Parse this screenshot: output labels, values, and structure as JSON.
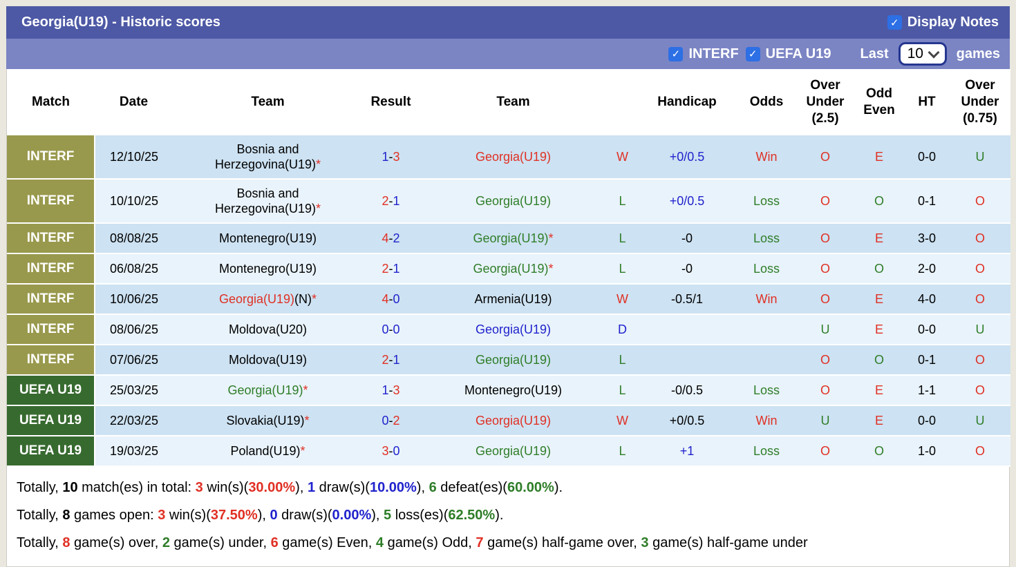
{
  "title_bar": {
    "title": "Georgia(U19) - Historic scores",
    "display_notes_label": "Display Notes",
    "display_notes_checked": true
  },
  "filter_bar": {
    "interf_label": "INTERF",
    "interf_checked": true,
    "uefa_label": "UEFA U19",
    "uefa_checked": true,
    "last_label": "Last",
    "last_games_value": "10",
    "games_label": "games"
  },
  "colors": {
    "red": "#e03024",
    "green": "#2e7d28",
    "blue": "#2023cc",
    "title_bar_bg": "#4d59a5",
    "filter_bar_bg": "#7b85c4",
    "interf_label_bg": "#99994d",
    "uefa_label_bg": "#376a2f",
    "row_stripe_dark": "#cde2f2",
    "row_stripe_light": "#e9f3fb",
    "checkbox_blue": "#2d6fe4"
  },
  "table": {
    "columns": [
      "Match",
      "Date",
      "Team",
      "Result",
      "Team",
      "",
      "Handicap",
      "Odds",
      "Over Under (2.5)",
      "Odd Even",
      "HT",
      "Over Under (0.75)"
    ],
    "rows": [
      {
        "league": "INTERF",
        "league_color": "olive",
        "date": "12/10/25",
        "team1": {
          "text": "Bosnia and Herzegovina(U19)",
          "color": "black",
          "star": true,
          "suffix": ""
        },
        "result": {
          "home": "1",
          "home_color": "blue",
          "away": "3",
          "away_color": "red"
        },
        "team2": {
          "text": "Georgia(U19)",
          "color": "red",
          "star": false,
          "suffix": ""
        },
        "wld": {
          "t": "W",
          "c": "red"
        },
        "handicap": {
          "t": "+0/0.5",
          "c": "blue"
        },
        "odds": {
          "t": "Win",
          "c": "red"
        },
        "ou25": {
          "t": "O",
          "c": "red"
        },
        "oddeven": {
          "t": "E",
          "c": "red"
        },
        "ht": "0-0",
        "ou075": {
          "t": "U",
          "c": "green"
        }
      },
      {
        "league": "INTERF",
        "league_color": "olive",
        "date": "10/10/25",
        "team1": {
          "text": "Bosnia and Herzegovina(U19)",
          "color": "black",
          "star": true,
          "suffix": ""
        },
        "result": {
          "home": "2",
          "home_color": "red",
          "away": "1",
          "away_color": "blue"
        },
        "team2": {
          "text": "Georgia(U19)",
          "color": "green",
          "star": false,
          "suffix": ""
        },
        "wld": {
          "t": "L",
          "c": "green"
        },
        "handicap": {
          "t": "+0/0.5",
          "c": "blue"
        },
        "odds": {
          "t": "Loss",
          "c": "green"
        },
        "ou25": {
          "t": "O",
          "c": "red"
        },
        "oddeven": {
          "t": "O",
          "c": "green"
        },
        "ht": "0-1",
        "ou075": {
          "t": "O",
          "c": "red"
        }
      },
      {
        "league": "INTERF",
        "league_color": "olive",
        "date": "08/08/25",
        "team1": {
          "text": "Montenegro(U19)",
          "color": "black",
          "star": false,
          "suffix": ""
        },
        "result": {
          "home": "4",
          "home_color": "red",
          "away": "2",
          "away_color": "blue"
        },
        "team2": {
          "text": "Georgia(U19)",
          "color": "green",
          "star": true,
          "suffix": ""
        },
        "wld": {
          "t": "L",
          "c": "green"
        },
        "handicap": {
          "t": "-0",
          "c": "black"
        },
        "odds": {
          "t": "Loss",
          "c": "green"
        },
        "ou25": {
          "t": "O",
          "c": "red"
        },
        "oddeven": {
          "t": "E",
          "c": "red"
        },
        "ht": "3-0",
        "ou075": {
          "t": "O",
          "c": "red"
        }
      },
      {
        "league": "INTERF",
        "league_color": "olive",
        "date": "06/08/25",
        "team1": {
          "text": "Montenegro(U19)",
          "color": "black",
          "star": false,
          "suffix": ""
        },
        "result": {
          "home": "2",
          "home_color": "red",
          "away": "1",
          "away_color": "blue"
        },
        "team2": {
          "text": "Georgia(U19)",
          "color": "green",
          "star": true,
          "suffix": ""
        },
        "wld": {
          "t": "L",
          "c": "green"
        },
        "handicap": {
          "t": "-0",
          "c": "black"
        },
        "odds": {
          "t": "Loss",
          "c": "green"
        },
        "ou25": {
          "t": "O",
          "c": "red"
        },
        "oddeven": {
          "t": "O",
          "c": "green"
        },
        "ht": "2-0",
        "ou075": {
          "t": "O",
          "c": "red"
        }
      },
      {
        "league": "INTERF",
        "league_color": "olive",
        "date": "10/06/25",
        "team1": {
          "text": "Georgia(U19)",
          "color": "red",
          "star": true,
          "suffix": "(N)"
        },
        "result": {
          "home": "4",
          "home_color": "red",
          "away": "0",
          "away_color": "blue"
        },
        "team2": {
          "text": "Armenia(U19)",
          "color": "black",
          "star": false,
          "suffix": ""
        },
        "wld": {
          "t": "W",
          "c": "red"
        },
        "handicap": {
          "t": "-0.5/1",
          "c": "black"
        },
        "odds": {
          "t": "Win",
          "c": "red"
        },
        "ou25": {
          "t": "O",
          "c": "red"
        },
        "oddeven": {
          "t": "E",
          "c": "red"
        },
        "ht": "4-0",
        "ou075": {
          "t": "O",
          "c": "red"
        }
      },
      {
        "league": "INTERF",
        "league_color": "olive",
        "date": "08/06/25",
        "team1": {
          "text": "Moldova(U20)",
          "color": "black",
          "star": false,
          "suffix": ""
        },
        "result": {
          "home": "0",
          "home_color": "blue",
          "away": "0",
          "away_color": "blue"
        },
        "team2": {
          "text": "Georgia(U19)",
          "color": "blue",
          "star": false,
          "suffix": ""
        },
        "wld": {
          "t": "D",
          "c": "blue"
        },
        "handicap": {
          "t": "",
          "c": "black"
        },
        "odds": {
          "t": "",
          "c": "black"
        },
        "ou25": {
          "t": "U",
          "c": "green"
        },
        "oddeven": {
          "t": "E",
          "c": "red"
        },
        "ht": "0-0",
        "ou075": {
          "t": "U",
          "c": "green"
        }
      },
      {
        "league": "INTERF",
        "league_color": "olive",
        "date": "07/06/25",
        "team1": {
          "text": "Moldova(U19)",
          "color": "black",
          "star": false,
          "suffix": ""
        },
        "result": {
          "home": "2",
          "home_color": "red",
          "away": "1",
          "away_color": "blue"
        },
        "team2": {
          "text": "Georgia(U19)",
          "color": "green",
          "star": false,
          "suffix": ""
        },
        "wld": {
          "t": "L",
          "c": "green"
        },
        "handicap": {
          "t": "",
          "c": "black"
        },
        "odds": {
          "t": "",
          "c": "black"
        },
        "ou25": {
          "t": "O",
          "c": "red"
        },
        "oddeven": {
          "t": "O",
          "c": "green"
        },
        "ht": "0-1",
        "ou075": {
          "t": "O",
          "c": "red"
        }
      },
      {
        "league": "UEFA U19",
        "league_color": "green",
        "date": "25/03/25",
        "team1": {
          "text": "Georgia(U19)",
          "color": "green",
          "star": true,
          "suffix": ""
        },
        "result": {
          "home": "1",
          "home_color": "blue",
          "away": "3",
          "away_color": "red"
        },
        "team2": {
          "text": "Montenegro(U19)",
          "color": "black",
          "star": false,
          "suffix": ""
        },
        "wld": {
          "t": "L",
          "c": "green"
        },
        "handicap": {
          "t": "-0/0.5",
          "c": "black"
        },
        "odds": {
          "t": "Loss",
          "c": "green"
        },
        "ou25": {
          "t": "O",
          "c": "red"
        },
        "oddeven": {
          "t": "E",
          "c": "red"
        },
        "ht": "1-1",
        "ou075": {
          "t": "O",
          "c": "red"
        }
      },
      {
        "league": "UEFA U19",
        "league_color": "green",
        "date": "22/03/25",
        "team1": {
          "text": "Slovakia(U19)",
          "color": "black",
          "star": true,
          "suffix": ""
        },
        "result": {
          "home": "0",
          "home_color": "blue",
          "away": "2",
          "away_color": "red"
        },
        "team2": {
          "text": "Georgia(U19)",
          "color": "red",
          "star": false,
          "suffix": ""
        },
        "wld": {
          "t": "W",
          "c": "red"
        },
        "handicap": {
          "t": "+0/0.5",
          "c": "black"
        },
        "odds": {
          "t": "Win",
          "c": "red"
        },
        "ou25": {
          "t": "U",
          "c": "green"
        },
        "oddeven": {
          "t": "E",
          "c": "red"
        },
        "ht": "0-0",
        "ou075": {
          "t": "U",
          "c": "green"
        }
      },
      {
        "league": "UEFA U19",
        "league_color": "green",
        "date": "19/03/25",
        "team1": {
          "text": "Poland(U19)",
          "color": "black",
          "star": true,
          "suffix": ""
        },
        "result": {
          "home": "3",
          "home_color": "red",
          "away": "0",
          "away_color": "blue"
        },
        "team2": {
          "text": "Georgia(U19)",
          "color": "green",
          "star": false,
          "suffix": ""
        },
        "wld": {
          "t": "L",
          "c": "green"
        },
        "handicap": {
          "t": "+1",
          "c": "blue"
        },
        "odds": {
          "t": "Loss",
          "c": "green"
        },
        "ou25": {
          "t": "O",
          "c": "red"
        },
        "oddeven": {
          "t": "O",
          "c": "green"
        },
        "ht": "1-0",
        "ou075": {
          "t": "O",
          "c": "red"
        }
      }
    ]
  },
  "summary": [
    {
      "parts": [
        {
          "t": "Totally, "
        },
        {
          "t": "10",
          "c": "black",
          "b": true
        },
        {
          "t": " match(es) in total: "
        },
        {
          "t": "3",
          "c": "red",
          "b": true
        },
        {
          "t": " win(s)("
        },
        {
          "t": "30.00%",
          "c": "red",
          "b": true
        },
        {
          "t": "), "
        },
        {
          "t": "1",
          "c": "blue",
          "b": true
        },
        {
          "t": " draw(s)("
        },
        {
          "t": "10.00%",
          "c": "blue",
          "b": true
        },
        {
          "t": "), "
        },
        {
          "t": "6",
          "c": "green",
          "b": true
        },
        {
          "t": " defeat(es)("
        },
        {
          "t": "60.00%",
          "c": "green",
          "b": true
        },
        {
          "t": ")."
        }
      ]
    },
    {
      "parts": [
        {
          "t": "Totally, "
        },
        {
          "t": "8",
          "c": "black",
          "b": true
        },
        {
          "t": " games open: "
        },
        {
          "t": "3",
          "c": "red",
          "b": true
        },
        {
          "t": " win(s)("
        },
        {
          "t": "37.50%",
          "c": "red",
          "b": true
        },
        {
          "t": "), "
        },
        {
          "t": "0",
          "c": "blue",
          "b": true
        },
        {
          "t": " draw(s)("
        },
        {
          "t": "0.00%",
          "c": "blue",
          "b": true
        },
        {
          "t": "), "
        },
        {
          "t": "5",
          "c": "green",
          "b": true
        },
        {
          "t": " loss(es)("
        },
        {
          "t": "62.50%",
          "c": "green",
          "b": true
        },
        {
          "t": ")."
        }
      ]
    },
    {
      "parts": [
        {
          "t": "Totally, "
        },
        {
          "t": "8",
          "c": "red",
          "b": true
        },
        {
          "t": " game(s) over, "
        },
        {
          "t": "2",
          "c": "green",
          "b": true
        },
        {
          "t": " game(s) under, "
        },
        {
          "t": "6",
          "c": "red",
          "b": true
        },
        {
          "t": " game(s) Even, "
        },
        {
          "t": "4",
          "c": "green",
          "b": true
        },
        {
          "t": " game(s) Odd, "
        },
        {
          "t": "7",
          "c": "red",
          "b": true
        },
        {
          "t": " game(s) half-game over, "
        },
        {
          "t": "3",
          "c": "green",
          "b": true
        },
        {
          "t": " game(s) half-game under"
        }
      ]
    }
  ]
}
